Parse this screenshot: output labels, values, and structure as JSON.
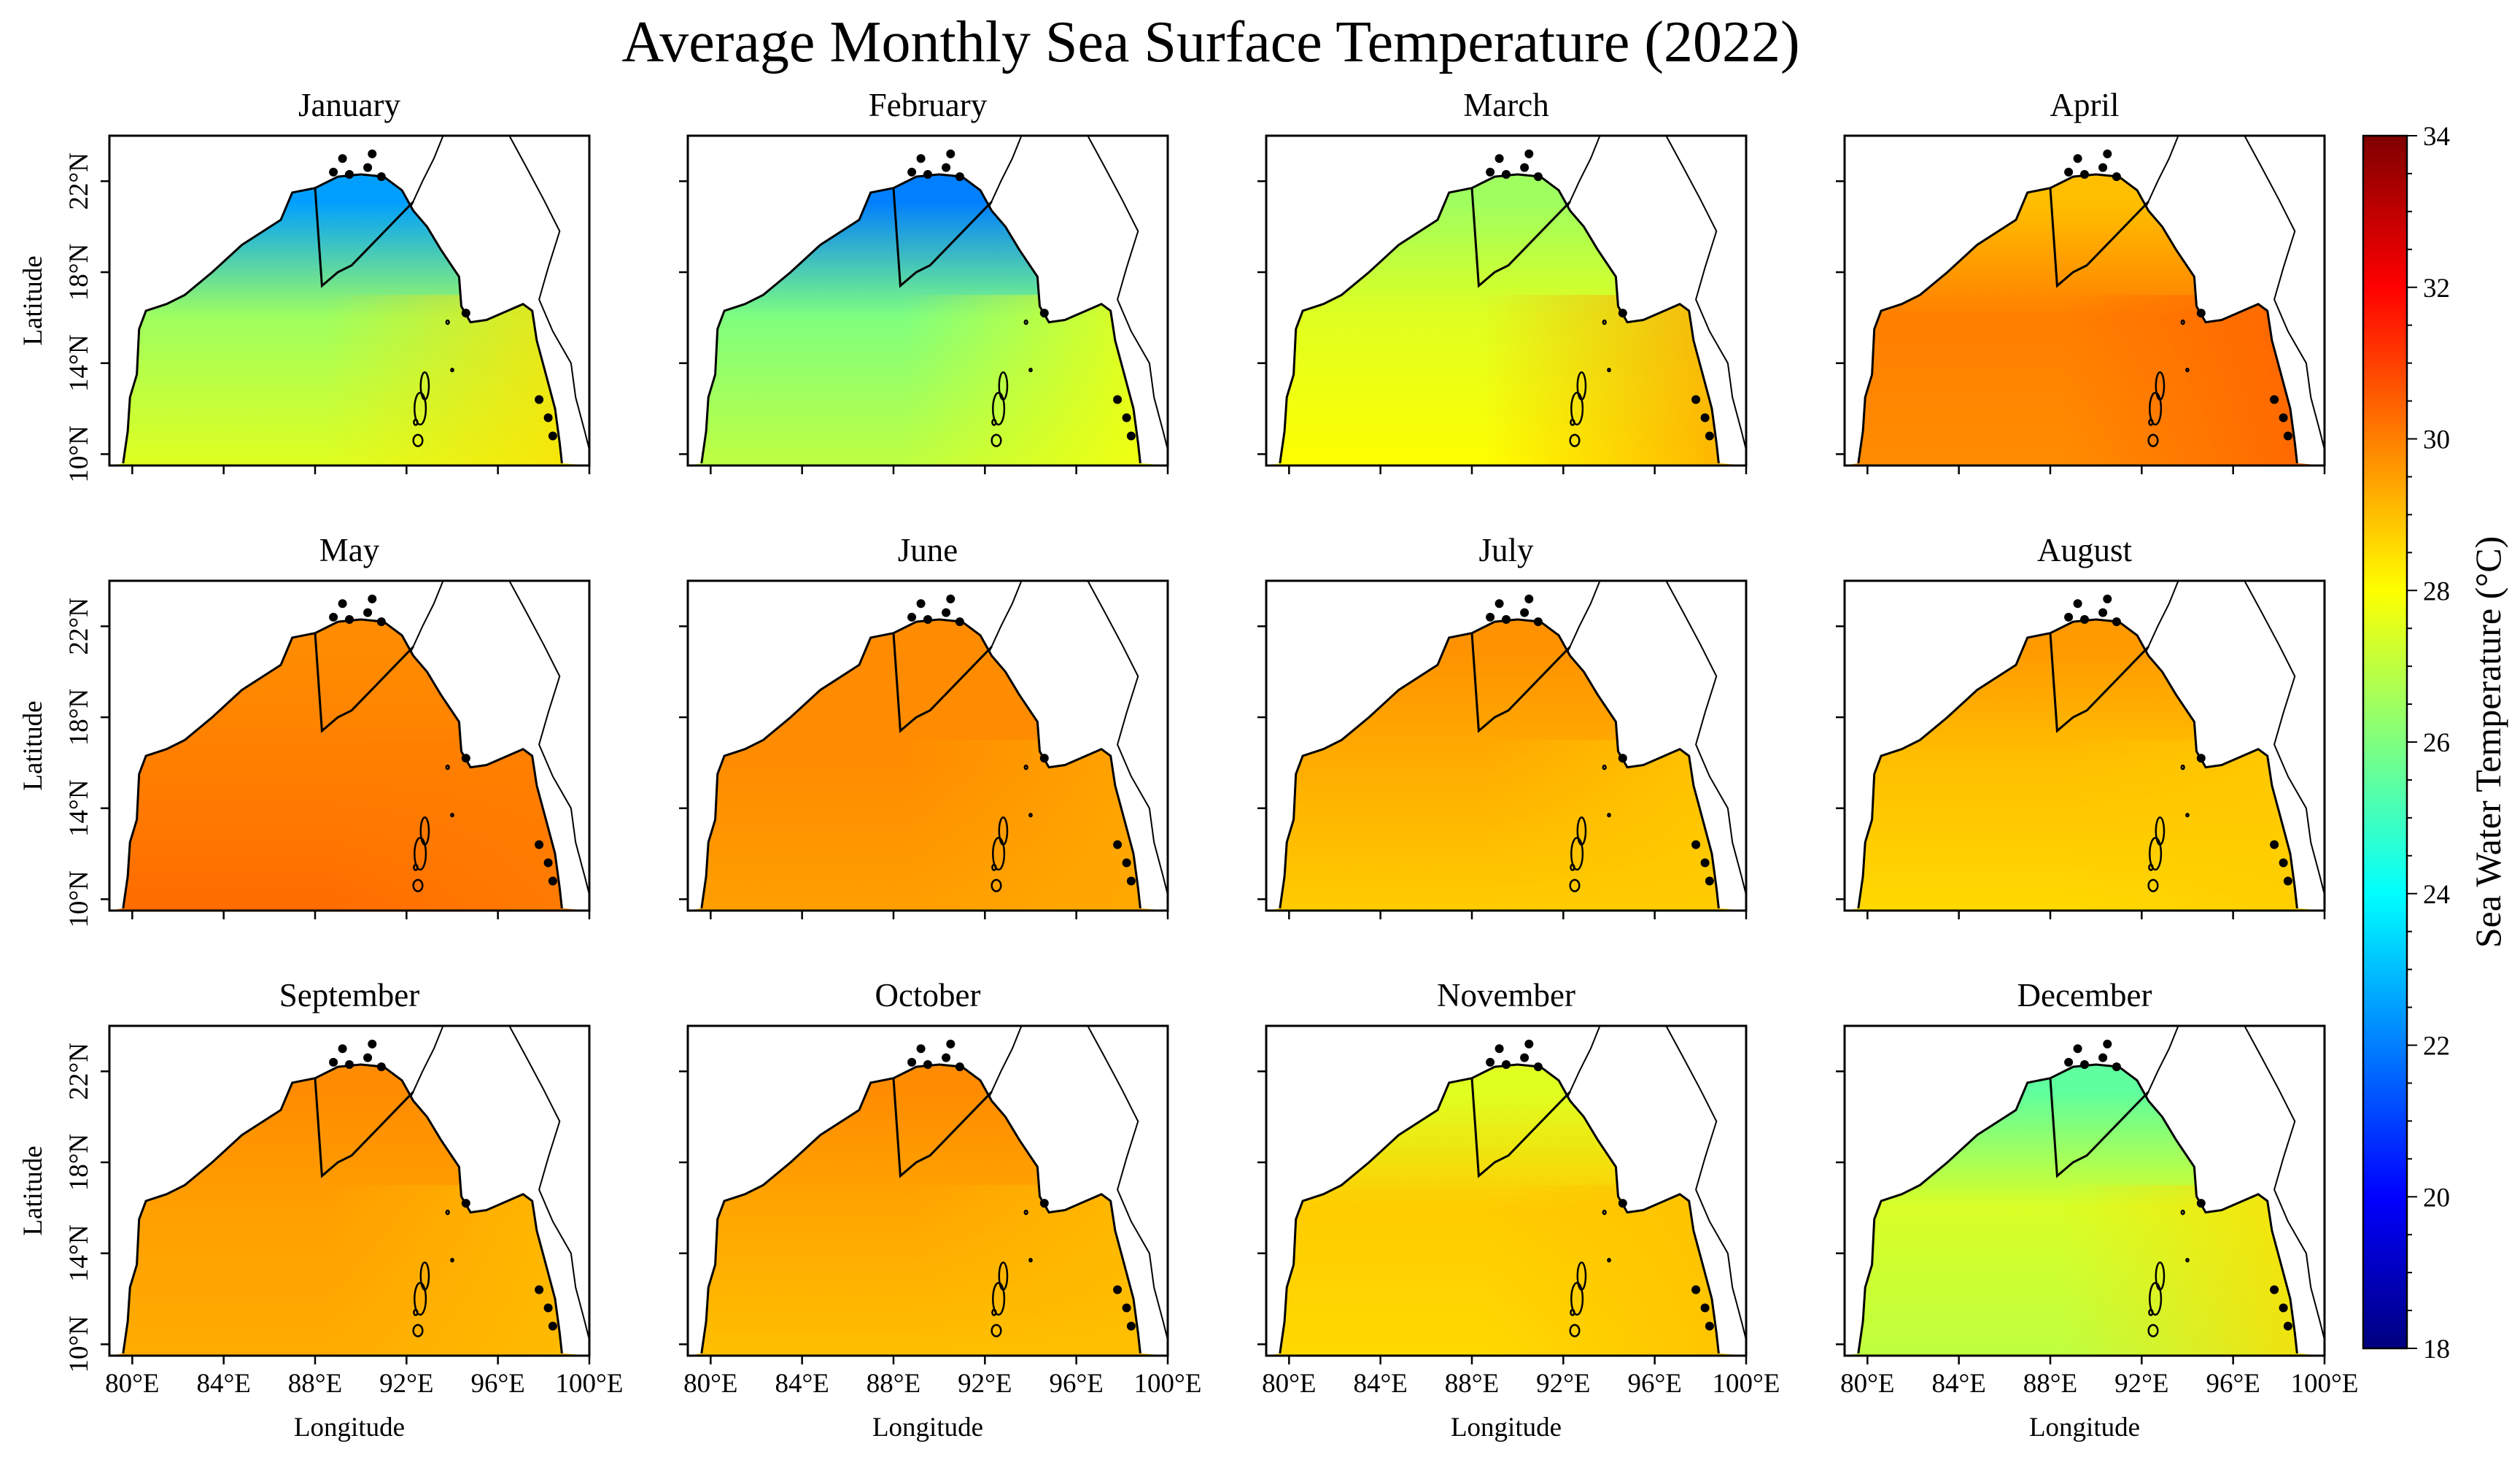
{
  "figure_title": "Average Monthly Sea Surface Temperature (2022)",
  "colors": {
    "land": "#ffffff",
    "coast": "#000000",
    "colormap": [
      "#00007f",
      "#0000ff",
      "#007fff",
      "#00ffff",
      "#7fff7f",
      "#ffff00",
      "#ff7f00",
      "#ff0000",
      "#7f0000"
    ]
  },
  "chart_data": {
    "type": "heatmap",
    "variable": "Sea Water Temperature (°C)",
    "colorbar": {
      "label": "Sea Water Temperature (°C)",
      "min": 18,
      "max": 34,
      "ticks": [
        "18",
        "20",
        "22",
        "24",
        "26",
        "28",
        "30",
        "32",
        "34"
      ],
      "colormap": "jet",
      "placement": "right"
    },
    "xlabel": "Longitude",
    "ylabel": "Latitude",
    "xlim": [
      79,
      100
    ],
    "ylim": [
      9.5,
      24
    ],
    "x_ticks": [
      80,
      84,
      88,
      92,
      96,
      100
    ],
    "x_tick_labels": [
      "80°E",
      "84°E",
      "88°E",
      "92°E",
      "96°E",
      "100°E"
    ],
    "y_ticks": [
      10,
      14,
      18,
      22
    ],
    "y_tick_labels": [
      "10°N",
      "14°N",
      "18°N",
      "22°N"
    ],
    "layout": "3 rows x 4 columns",
    "panels": [
      {
        "month": "January",
        "north_sst": 22.5,
        "central_sst": 26.5,
        "southwest_sst": 27.5,
        "southeast_sst": 28.5
      },
      {
        "month": "February",
        "north_sst": 22.0,
        "central_sst": 26.0,
        "southwest_sst": 27.0,
        "southeast_sst": 28.0
      },
      {
        "month": "March",
        "north_sst": 26.5,
        "central_sst": 27.5,
        "southwest_sst": 28.0,
        "southeast_sst": 29.5
      },
      {
        "month": "April",
        "north_sst": 29.0,
        "central_sst": 30.0,
        "southwest_sst": 29.8,
        "southeast_sst": 30.5
      },
      {
        "month": "May",
        "north_sst": 29.8,
        "central_sst": 30.0,
        "southwest_sst": 30.3,
        "southeast_sst": 30.0
      },
      {
        "month": "June",
        "north_sst": 29.8,
        "central_sst": 29.8,
        "southwest_sst": 29.5,
        "southeast_sst": 29.3
      },
      {
        "month": "July",
        "north_sst": 29.7,
        "central_sst": 29.3,
        "southwest_sst": 28.8,
        "southeast_sst": 28.8
      },
      {
        "month": "August",
        "north_sst": 29.6,
        "central_sst": 29.0,
        "southwest_sst": 28.6,
        "southeast_sst": 28.8
      },
      {
        "month": "September",
        "north_sst": 29.8,
        "central_sst": 29.5,
        "southwest_sst": 29.3,
        "southeast_sst": 29.0
      },
      {
        "month": "October",
        "north_sst": 29.8,
        "central_sst": 29.4,
        "southwest_sst": 29.0,
        "southeast_sst": 29.0
      },
      {
        "month": "November",
        "north_sst": 27.5,
        "central_sst": 28.8,
        "southwest_sst": 28.6,
        "southeast_sst": 29.0
      },
      {
        "month": "December",
        "north_sst": 25.5,
        "central_sst": 27.4,
        "southwest_sst": 27.0,
        "southeast_sst": 28.6
      }
    ]
  }
}
